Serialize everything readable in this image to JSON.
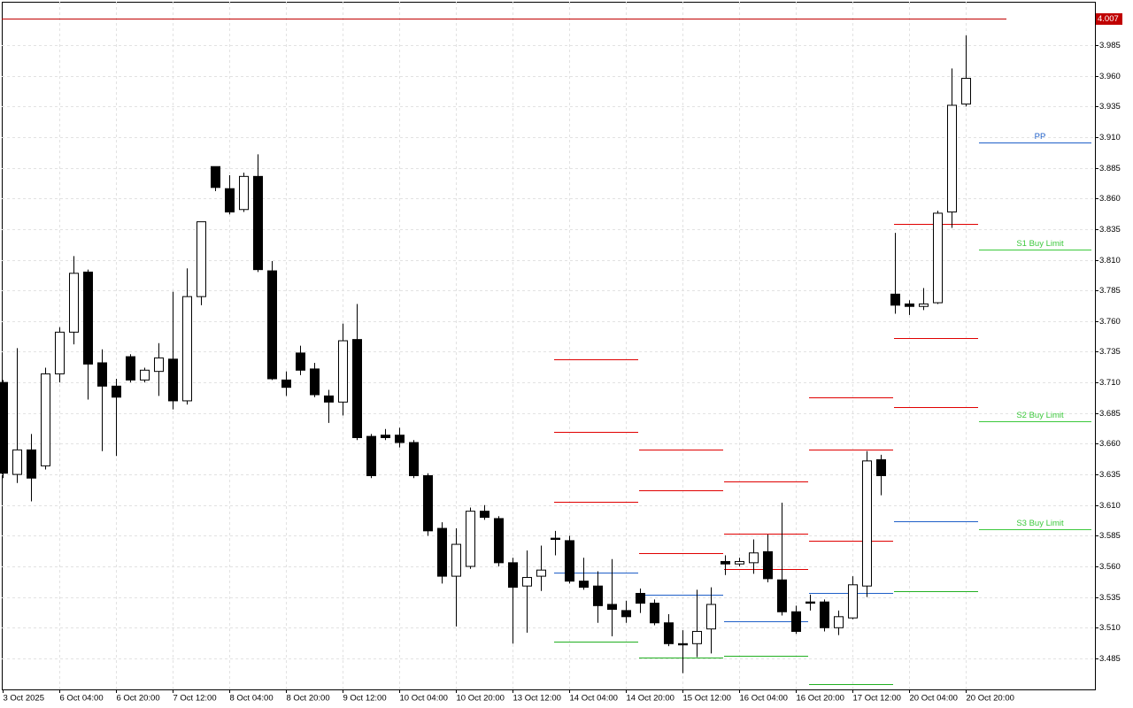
{
  "chart_data": {
    "type": "candlestick",
    "categories": [
      "3 Oct 2025",
      null,
      null,
      null,
      "6 Oct 04:00",
      null,
      null,
      null,
      "6 Oct 20:00",
      null,
      null,
      null,
      "7 Oct 12:00",
      null,
      null,
      null,
      "8 Oct 04:00",
      null,
      null,
      null,
      "8 Oct 20:00",
      null,
      null,
      null,
      "9 Oct 12:00",
      null,
      null,
      null,
      "10 Oct 04:00",
      null,
      null,
      null,
      "10 Oct 20:00",
      null,
      null,
      null,
      "13 Oct 12:00",
      null,
      null,
      null,
      "14 Oct 04:00",
      null,
      null,
      null,
      "14 Oct 20:00",
      null,
      null,
      null,
      "15 Oct 12:00",
      null,
      null,
      null,
      "16 Oct 04:00",
      null,
      null,
      null,
      "16 Oct 20:00",
      null,
      null,
      null,
      "17 Oct 12:00",
      null,
      null,
      null,
      "20 Oct 04:00",
      null,
      null,
      null,
      "20 Oct 20:00"
    ],
    "open": [
      3.71,
      3.635,
      3.655,
      3.642,
      3.717,
      3.751,
      3.8,
      3.726,
      3.707,
      3.731,
      3.712,
      3.719,
      3.729,
      3.695,
      3.78,
      3.886,
      3.868,
      3.851,
      3.878,
      3.801,
      3.712,
      3.734,
      3.721,
      3.699,
      3.694,
      3.745,
      3.666,
      3.667,
      3.667,
      3.661,
      3.634,
      3.591,
      3.552,
      3.56,
      3.605,
      3.599,
      3.563,
      3.544,
      3.552,
      3.583,
      3.581,
      3.548,
      3.544,
      3.529,
      3.524,
      3.538,
      3.53,
      3.514,
      3.497,
      3.497,
      3.509,
      3.564,
      3.562,
      3.563,
      3.572,
      3.549,
      3.523,
      3.531,
      3.531,
      3.51,
      3.518,
      3.544,
      3.647,
      3.782,
      3.774,
      3.772,
      3.775,
      3.849,
      3.937
    ],
    "high": [
      3.712,
      3.738,
      3.668,
      3.722,
      3.755,
      3.813,
      3.802,
      3.737,
      3.713,
      3.733,
      3.722,
      3.742,
      3.784,
      3.803,
      3.841,
      3.886,
      3.879,
      3.881,
      3.896,
      3.809,
      3.719,
      3.74,
      3.726,
      3.704,
      3.758,
      3.774,
      3.668,
      3.672,
      3.673,
      3.663,
      3.636,
      3.596,
      3.591,
      3.608,
      3.61,
      3.601,
      3.567,
      3.573,
      3.577,
      3.589,
      3.585,
      3.567,
      3.556,
      3.566,
      3.532,
      3.542,
      3.533,
      3.521,
      3.508,
      3.541,
      3.543,
      3.569,
      3.567,
      3.582,
      3.586,
      3.612,
      3.528,
      3.537,
      3.533,
      3.524,
      3.552,
      3.654,
      3.651,
      3.832,
      3.777,
      3.787,
      3.85,
      3.966,
      3.993
    ],
    "low": [
      3.632,
      3.628,
      3.613,
      3.639,
      3.71,
      3.741,
      3.696,
      3.654,
      3.65,
      3.71,
      3.71,
      3.699,
      3.688,
      3.692,
      3.773,
      3.866,
      3.847,
      3.849,
      3.8,
      3.712,
      3.699,
      3.716,
      3.698,
      3.677,
      3.683,
      3.663,
      3.632,
      3.663,
      3.657,
      3.632,
      3.585,
      3.546,
      3.511,
      3.558,
      3.598,
      3.56,
      3.497,
      3.506,
      3.54,
      3.569,
      3.546,
      3.541,
      3.514,
      3.503,
      3.514,
      3.522,
      3.512,
      3.495,
      3.473,
      3.486,
      3.489,
      3.553,
      3.56,
      3.554,
      3.547,
      3.52,
      3.505,
      3.524,
      3.507,
      3.504,
      3.517,
      3.535,
      3.618,
      3.766,
      3.765,
      3.769,
      3.774,
      3.836,
      3.935
    ],
    "close": [
      3.636,
      3.655,
      3.632,
      3.717,
      3.751,
      3.799,
      3.725,
      3.707,
      3.698,
      3.712,
      3.72,
      3.73,
      3.695,
      3.78,
      3.841,
      3.869,
      3.849,
      3.878,
      3.802,
      3.713,
      3.706,
      3.72,
      3.7,
      3.694,
      3.744,
      3.665,
      3.634,
      3.665,
      3.661,
      3.634,
      3.589,
      3.552,
      3.578,
      3.605,
      3.6,
      3.563,
      3.543,
      3.551,
      3.557,
      3.582,
      3.548,
      3.543,
      3.528,
      3.525,
      3.519,
      3.53,
      3.514,
      3.497,
      3.496,
      3.507,
      3.529,
      3.562,
      3.564,
      3.571,
      3.55,
      3.523,
      3.507,
      3.53,
      3.51,
      3.519,
      3.545,
      3.646,
      3.634,
      3.773,
      3.772,
      3.774,
      3.848,
      3.936,
      3.958
    ],
    "up_color": "#ffffff",
    "down_color": "#000000",
    "ylim": [
      3.4597,
      4.0204
    ],
    "yticks": [
      3.485,
      {
        "value": 3.51,
        "label": "3.510"
      },
      3.535,
      {
        "value": 3.56,
        "label": "3.560"
      },
      3.585,
      {
        "value": 3.61,
        "label": "3.610"
      },
      3.635,
      {
        "value": 3.66,
        "label": "3.660"
      },
      3.685,
      {
        "value": 3.71,
        "label": "3.710"
      },
      3.735,
      {
        "value": 3.76,
        "label": "3.760"
      },
      3.785,
      {
        "value": 3.81,
        "label": "3.810"
      },
      3.835,
      {
        "value": 3.86,
        "label": "3.860"
      },
      3.885,
      {
        "value": 3.91,
        "label": "3.910"
      },
      3.935,
      {
        "value": 3.96,
        "label": "3.960"
      },
      3.985
    ],
    "grid": true,
    "pivot_days": [
      [
        3.729,
        3.67,
        3.613,
        3.555,
        3.499
      ],
      [
        3.655,
        3.622,
        3.571,
        3.537,
        3.486
      ],
      [
        3.629,
        3.587,
        3.558,
        3.515,
        3.487
      ],
      [
        3.698,
        3.655,
        3.581,
        3.538,
        3.464
      ],
      [
        3.839,
        3.746,
        3.69,
        3.597,
        3.54
      ]
    ],
    "pivot_colors": [
      "#e00000",
      "#e00000",
      "#e00000",
      "#1f5fc8",
      "#22b022"
    ],
    "levels": [
      {
        "name": "PP",
        "value": 3.906,
        "color": "#1f5fc8"
      },
      {
        "name": "S1 Buy Limit",
        "value": 3.818,
        "color": "#3cc83c"
      },
      {
        "name": "S2 Buy Limit",
        "value": 3.678,
        "color": "#3cc83c"
      },
      {
        "name": "S3 Buy Limit",
        "value": 3.59,
        "color": "#3cc83c"
      }
    ],
    "current_price": 4.007,
    "current_price_color": "#c00000"
  }
}
